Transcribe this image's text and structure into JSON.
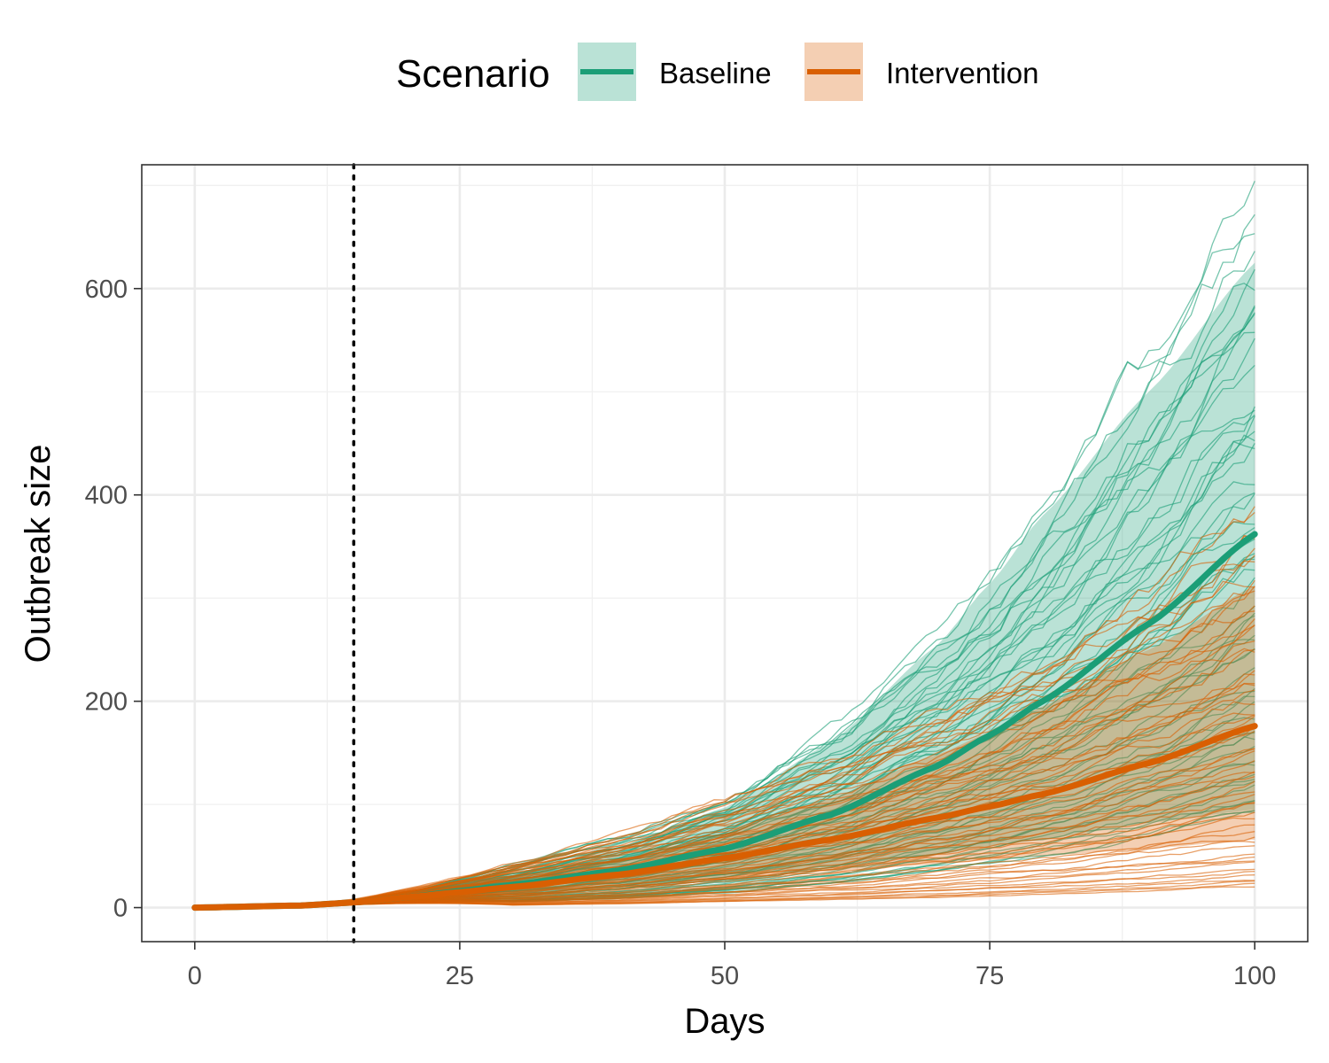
{
  "chart_data": {
    "type": "line",
    "xlabel": "Days",
    "ylabel": "Outbreak size",
    "xlim": [
      -5,
      105
    ],
    "ylim": [
      -33,
      720
    ],
    "x_ticks": [
      0,
      25,
      50,
      75,
      100
    ],
    "x_tick_labels": [
      "0",
      "25",
      "50",
      "75",
      "100"
    ],
    "y_ticks": [
      0,
      200,
      400,
      600
    ],
    "y_tick_labels": [
      "0",
      "200",
      "400",
      "600"
    ],
    "x_minor_ticks": [
      12.5,
      37.5,
      62.5,
      87.5
    ],
    "y_minor_ticks": [
      100,
      300,
      500,
      700
    ],
    "grid": true,
    "intervention_day": 15,
    "legend": {
      "title": "Scenario",
      "placement": "top"
    },
    "series": [
      {
        "name": "Baseline",
        "color": "#1b9e77",
        "x": [
          0,
          10,
          15,
          20,
          25,
          30,
          40,
          50,
          60,
          70,
          75,
          80,
          90,
          100
        ],
        "mean": [
          0,
          2,
          5,
          10,
          16,
          22,
          36,
          57,
          90,
          137,
          167,
          200,
          275,
          362
        ],
        "lower": [
          0,
          1,
          3,
          7,
          11,
          15,
          22,
          30,
          40,
          52,
          59,
          66,
          82,
          95
        ],
        "upper": [
          0,
          3,
          7,
          14,
          23,
          33,
          58,
          97,
          160,
          254,
          314,
          380,
          500,
          625
        ],
        "range_at_day_100": [
          90,
          685
        ]
      },
      {
        "name": "Intervention",
        "color": "#d95f02",
        "x": [
          0,
          10,
          15,
          20,
          25,
          30,
          40,
          50,
          60,
          70,
          75,
          80,
          90,
          100
        ],
        "mean": [
          0,
          2,
          5,
          10,
          15,
          20,
          32,
          48,
          66,
          87,
          98,
          110,
          140,
          176
        ],
        "lower": [
          0,
          1,
          3,
          6,
          10,
          14,
          20,
          27,
          35,
          42,
          46,
          50,
          57,
          66
        ],
        "upper": [
          0,
          3,
          7,
          13,
          21,
          28,
          46,
          72,
          106,
          148,
          170,
          195,
          250,
          312
        ],
        "range_at_day_100": [
          20,
          390
        ]
      }
    ]
  }
}
